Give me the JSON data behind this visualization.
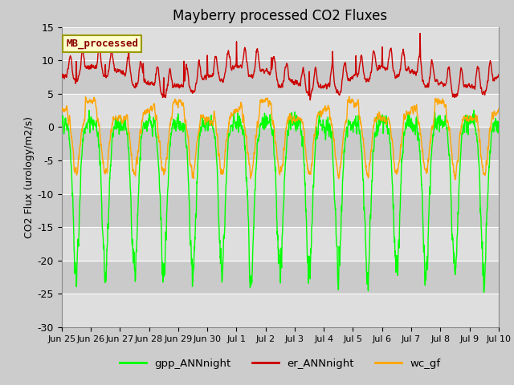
{
  "title": "Mayberry processed CO2 Fluxes",
  "ylabel": "CO2 Flux (urology/m2/s)",
  "ylim": [
    -30,
    15
  ],
  "yticks": [
    -30,
    -25,
    -20,
    -15,
    -10,
    -5,
    0,
    5,
    10,
    15
  ],
  "legend_labels": [
    "gpp_ANNnight",
    "er_ANNnight",
    "wc_gf"
  ],
  "legend_colors": [
    "#00FF00",
    "#CC0000",
    "#FFA500"
  ],
  "inner_label": "MB_processed",
  "inner_label_color": "#8B0000",
  "inner_label_bg": "#FFFFCC",
  "bg_color": "#D8D8D8",
  "band_light": "#DCDCDC",
  "band_dark": "#C8C8C8",
  "xtick_labels": [
    "Jun 25",
    "Jun 26",
    "Jun 27",
    "Jun 28",
    "Jun 29",
    "Jun 30",
    "Jul 1",
    "Jul 2",
    "Jul 3",
    "Jul 4",
    "Jul 5",
    "Jul 6",
    "Jul 7",
    "Jul 8",
    "Jul 9",
    "Jul 10"
  ],
  "n_days": 15,
  "ppd": 144
}
